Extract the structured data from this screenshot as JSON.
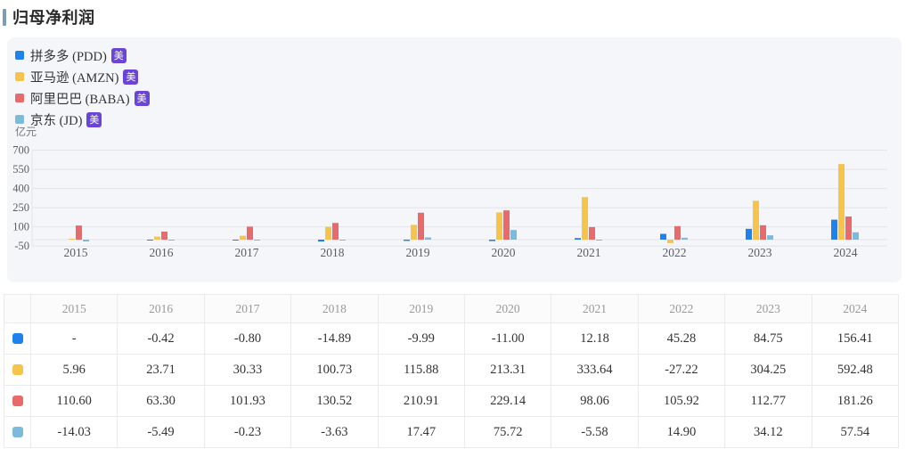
{
  "page": {
    "title": "归母净利润",
    "unit_label": "亿元"
  },
  "legend": {
    "badge_label": "美",
    "items": [
      {
        "label": "拼多多 (PDD)",
        "color": "#1e82ec"
      },
      {
        "label": "亚马逊 (AMZN)",
        "color": "#f6c44a"
      },
      {
        "label": "阿里巴巴 (BABA)",
        "color": "#e96a6a"
      },
      {
        "label": "京东 (JD)",
        "color": "#7dbbdc"
      }
    ]
  },
  "chart_data": {
    "type": "bar",
    "title": "归母净利润",
    "ylabel": "亿元",
    "categories": [
      "2015",
      "2016",
      "2017",
      "2018",
      "2019",
      "2020",
      "2021",
      "2022",
      "2023",
      "2024"
    ],
    "series": [
      {
        "name": "拼多多 (PDD)",
        "color": "#1e82ec",
        "values": [
          null,
          -0.42,
          -0.8,
          -14.89,
          -9.99,
          -11.0,
          12.18,
          45.28,
          84.75,
          156.41
        ]
      },
      {
        "name": "亚马逊 (AMZN)",
        "color": "#f6c44a",
        "values": [
          5.96,
          23.71,
          30.33,
          100.73,
          115.88,
          213.31,
          333.64,
          -27.22,
          304.25,
          592.48
        ]
      },
      {
        "name": "阿里巴巴 (BABA)",
        "color": "#e96a6a",
        "values": [
          110.6,
          63.3,
          101.93,
          130.52,
          210.91,
          229.14,
          98.06,
          105.92,
          112.77,
          181.26
        ]
      },
      {
        "name": "京东 (JD)",
        "color": "#7dbbdc",
        "values": [
          -14.03,
          -5.49,
          -0.23,
          -3.63,
          17.47,
          75.72,
          -5.58,
          14.9,
          34.12,
          57.54
        ]
      }
    ],
    "yticks": [
      -50,
      100,
      250,
      400,
      550,
      700
    ],
    "ylim": [
      -50,
      700
    ],
    "grid": true,
    "legend_position": "top-left"
  },
  "table": {
    "headers": [
      "",
      "2015",
      "2016",
      "2017",
      "2018",
      "2019",
      "2020",
      "2021",
      "2022",
      "2023",
      "2024"
    ],
    "rows": [
      {
        "color": "#1e82ec",
        "values": [
          "-",
          "-0.42",
          "-0.80",
          "-14.89",
          "-9.99",
          "-11.00",
          "12.18",
          "45.28",
          "84.75",
          "156.41"
        ]
      },
      {
        "color": "#f6c44a",
        "values": [
          "5.96",
          "23.71",
          "30.33",
          "100.73",
          "115.88",
          "213.31",
          "333.64",
          "-27.22",
          "304.25",
          "592.48"
        ]
      },
      {
        "color": "#e96a6a",
        "values": [
          "110.60",
          "63.30",
          "101.93",
          "130.52",
          "210.91",
          "229.14",
          "98.06",
          "105.92",
          "112.77",
          "181.26"
        ]
      },
      {
        "color": "#7dbbdc",
        "values": [
          "-14.03",
          "-5.49",
          "-0.23",
          "-3.63",
          "17.47",
          "75.72",
          "-5.58",
          "14.90",
          "34.12",
          "57.54"
        ]
      }
    ]
  },
  "colors": {
    "accent_bar": "#7f9bb8",
    "panel_bg": "#f5f6fa",
    "grid_line": "#e2e3e9",
    "badge_bg": "#6a43d9",
    "axis_text": "#5c5c66"
  }
}
